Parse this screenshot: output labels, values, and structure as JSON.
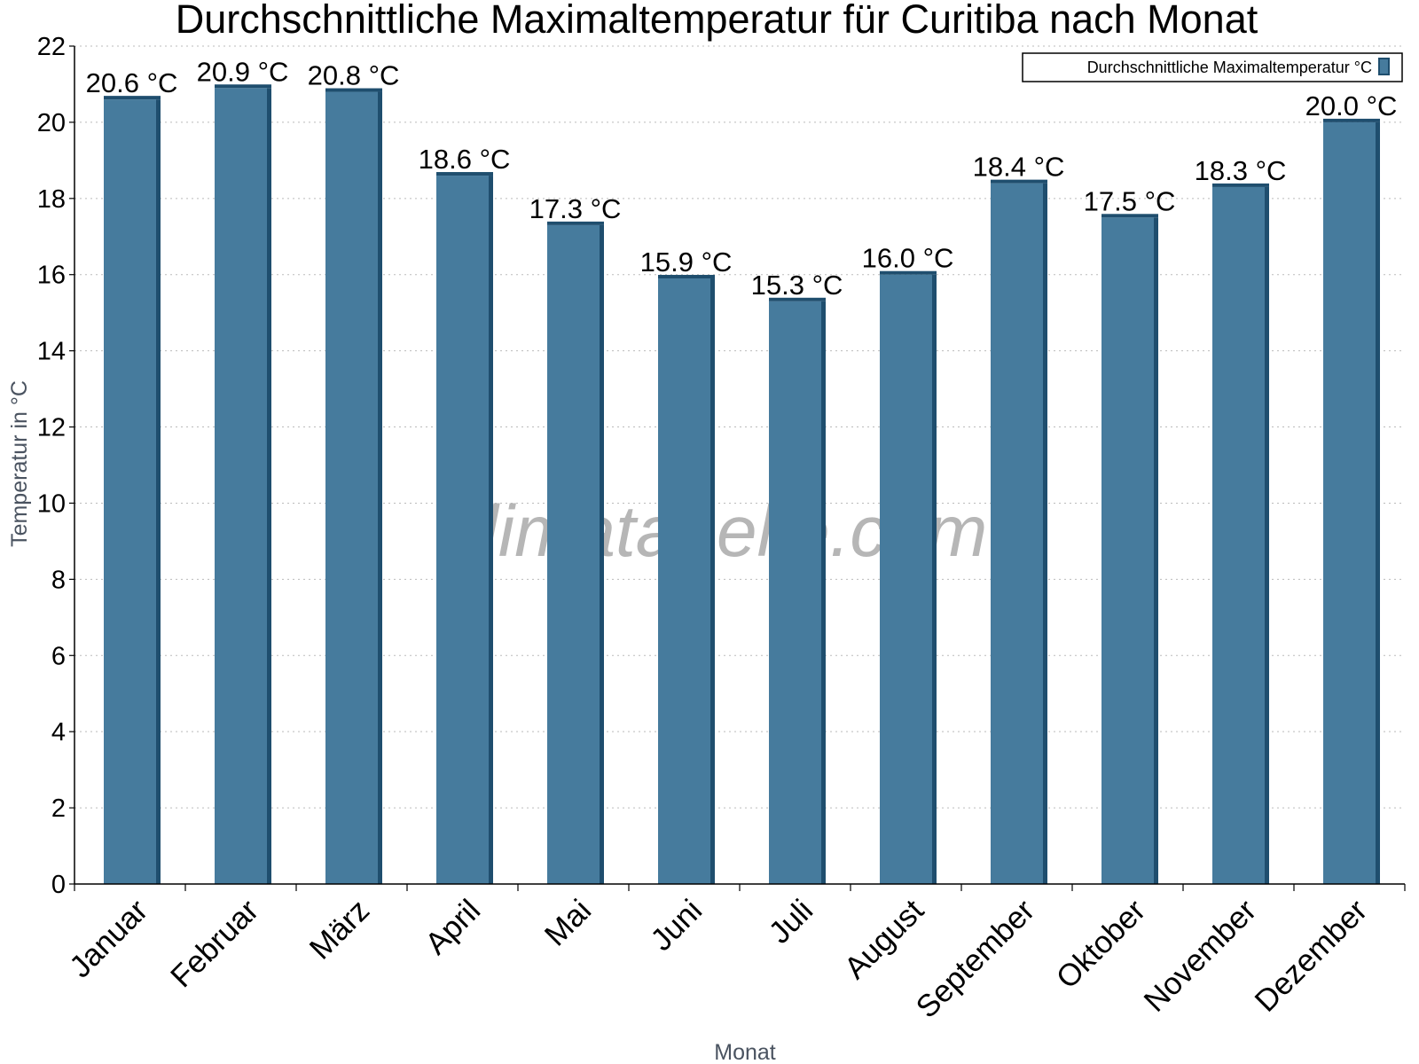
{
  "chart_data": {
    "type": "bar",
    "title": "Durchschnittliche Maximaltemperatur für Curitiba nach Monat",
    "xlabel": "Monat",
    "ylabel": "Temperatur in °C",
    "ylim": [
      0,
      22
    ],
    "yticks": [
      0,
      2,
      4,
      6,
      8,
      10,
      12,
      14,
      16,
      18,
      20,
      22
    ],
    "grid": "horizontal-dotted",
    "legend_position": "top-right",
    "categories": [
      "Januar",
      "Februar",
      "März",
      "April",
      "Mai",
      "Juni",
      "Juli",
      "August",
      "September",
      "Oktober",
      "November",
      "Dezember"
    ],
    "series": [
      {
        "name": "Durchschnittliche Maximaltemperatur °C",
        "values": [
          20.6,
          20.9,
          20.8,
          18.6,
          17.3,
          15.9,
          15.3,
          16.0,
          18.4,
          17.5,
          18.3,
          20.0
        ],
        "labels": [
          "20.6 °C",
          "20.9 °C",
          "20.8 °C",
          "18.6 °C",
          "17.3 °C",
          "15.9 °C",
          "15.3 °C",
          "16.0 °C",
          "18.4 °C",
          "17.5 °C",
          "18.3 °C",
          "20.0 °C"
        ],
        "color": "#467b9d",
        "edge_color": "#1f4e6e"
      }
    ],
    "watermark": "klimatabelle.com"
  }
}
